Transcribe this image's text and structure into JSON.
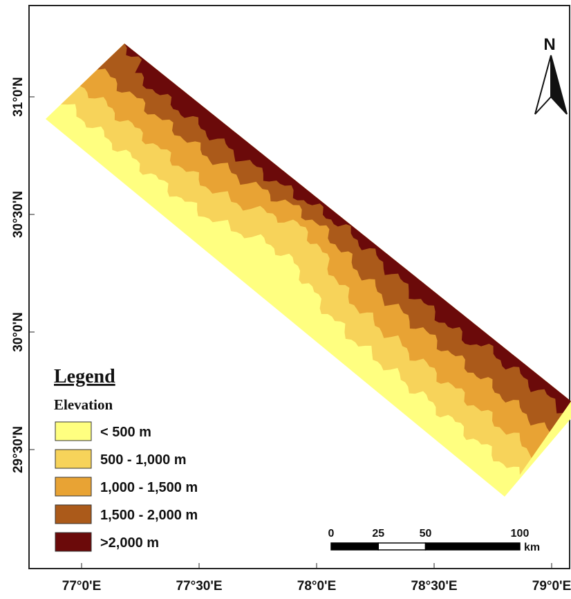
{
  "north_arrow": "N",
  "lat_labels": [
    "31°0'N",
    "30°30'N",
    "30°0'N",
    "29°30'N"
  ],
  "lon_labels": [
    "77°0'E",
    "77°30'E",
    "78°0'E",
    "78°30'E",
    "79°0'E"
  ],
  "legend": {
    "title": "Legend",
    "subtitle": "Elevation",
    "items": [
      {
        "label": "< 500 m",
        "color": "#ffff80"
      },
      {
        "label": "500 - 1,000 m",
        "color": "#f7d35a"
      },
      {
        "label": "1,000 - 1,500 m",
        "color": "#e8a334"
      },
      {
        "label": "1,500 - 2,000 m",
        "color": "#ab5a1a"
      },
      {
        "label": ">2,000 m",
        "color": "#6b0a0a"
      }
    ]
  },
  "scale_bar": {
    "ticks": [
      0,
      25,
      50,
      100
    ],
    "unit": "km"
  }
}
